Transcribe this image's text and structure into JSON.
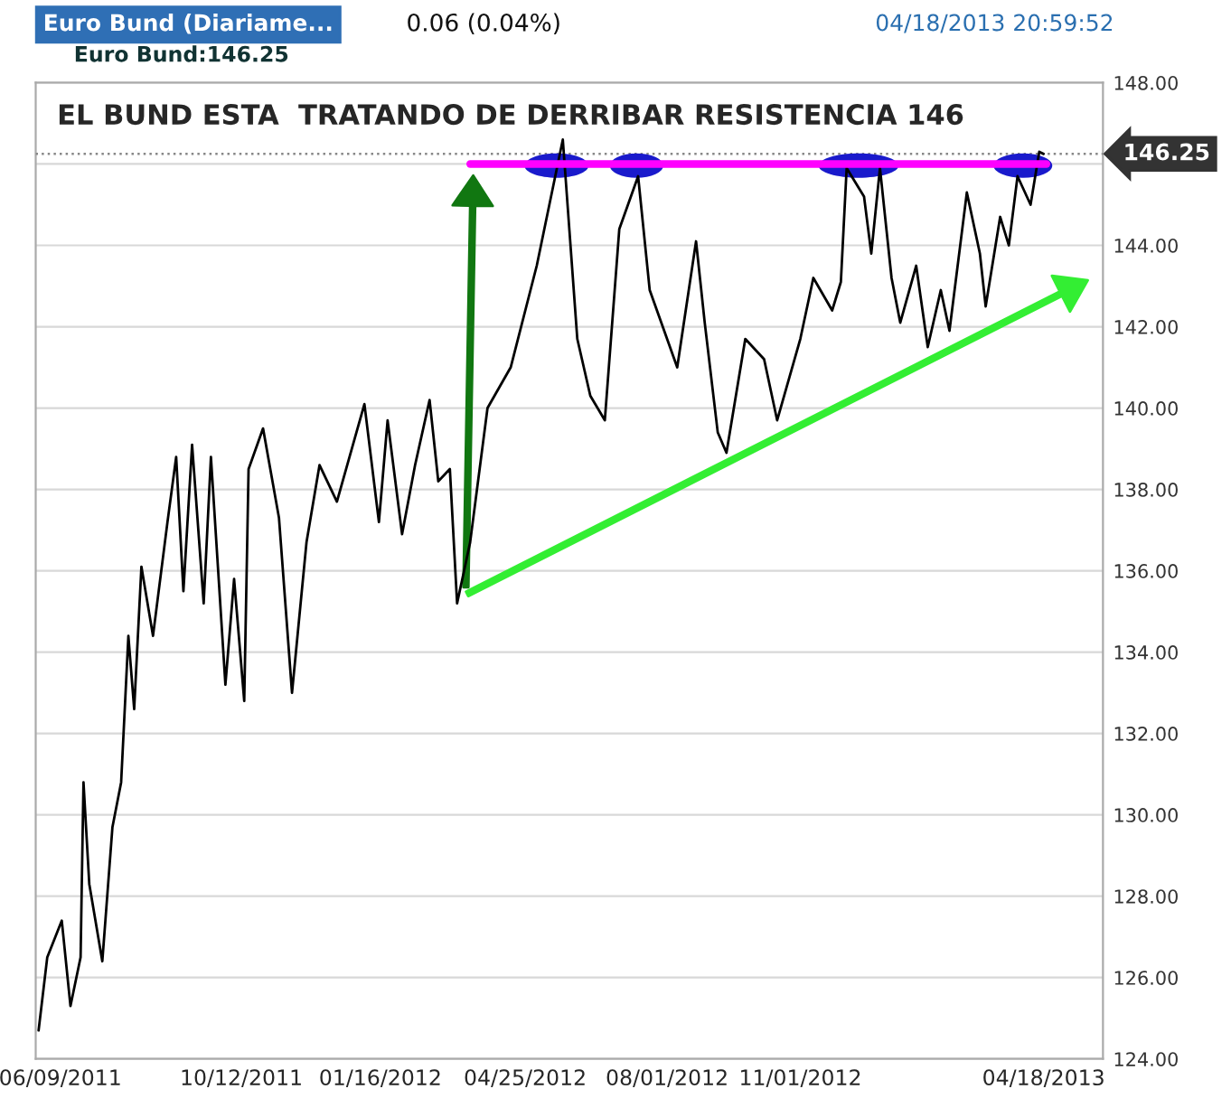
{
  "chart_data": {
    "type": "line",
    "title": "EL BUND ESTA  TRATANDO DE DERRIBAR RESISTENCIA 146",
    "annotations": [
      "Euro Bund (Diariame...",
      "0.06 (0.04%)",
      "04/18/2013 20:59:52",
      "Euro Bund:146.25"
    ],
    "series": [
      {
        "color": "#000000",
        "x": [
          "2011-05-25",
          "2011-05-31",
          "2011-06-10",
          "2011-06-16",
          "2011-06-23",
          "2011-06-25",
          "2011-06-29",
          "2011-07-08",
          "2011-07-15",
          "2011-07-21",
          "2011-07-26",
          "2011-07-30",
          "2011-08-04",
          "2011-08-12",
          "2011-08-22",
          "2011-08-28",
          "2011-09-02",
          "2011-09-08",
          "2011-09-16",
          "2011-09-21",
          "2011-10-01",
          "2011-10-07",
          "2011-10-14",
          "2011-10-17",
          "2011-10-27",
          "2011-11-07",
          "2011-11-16",
          "2011-11-26",
          "2011-12-05",
          "2011-12-17",
          "2012-01-05",
          "2012-01-15",
          "2012-01-21",
          "2012-01-31",
          "2012-02-09",
          "2012-02-19",
          "2012-02-25",
          "2012-03-04",
          "2012-03-09",
          "2012-03-18",
          "2012-03-30",
          "2012-04-15",
          "2012-05-03",
          "2012-05-21",
          "2012-05-31",
          "2012-06-09",
          "2012-06-19",
          "2012-06-29",
          "2012-07-12",
          "2012-07-20",
          "2012-08-08",
          "2012-08-21",
          "2012-08-27",
          "2012-09-05",
          "2012-09-11",
          "2012-09-24",
          "2012-10-07",
          "2012-10-16",
          "2012-11-01",
          "2012-11-10",
          "2012-11-23",
          "2012-11-29",
          "2012-12-03",
          "2012-12-15",
          "2012-12-20",
          "2012-12-26",
          "2013-01-03",
          "2013-01-09",
          "2013-01-20",
          "2013-01-28",
          "2013-02-06",
          "2013-02-12",
          "2013-02-24",
          "2013-03-05",
          "2013-03-09",
          "2013-03-19",
          "2013-03-25",
          "2013-03-31",
          "2013-04-09",
          "2013-04-15",
          "2013-04-18"
        ],
        "values": [
          124.7,
          126.5,
          127.4,
          125.3,
          126.5,
          130.8,
          128.3,
          126.4,
          129.7,
          130.8,
          134.4,
          132.6,
          136.1,
          134.4,
          137.2,
          138.8,
          135.5,
          139.1,
          135.2,
          138.8,
          133.2,
          135.8,
          132.8,
          138.5,
          139.5,
          137.3,
          133.0,
          136.7,
          138.6,
          137.7,
          140.1,
          137.2,
          139.7,
          136.9,
          138.6,
          140.2,
          138.2,
          138.5,
          135.2,
          136.7,
          140.0,
          141.0,
          143.5,
          146.6,
          141.7,
          140.3,
          139.7,
          144.4,
          145.7,
          142.9,
          141.0,
          144.1,
          142.1,
          139.4,
          138.9,
          141.7,
          141.2,
          139.7,
          141.7,
          143.2,
          142.4,
          143.1,
          145.9,
          145.2,
          143.8,
          145.9,
          143.2,
          142.1,
          143.5,
          141.5,
          142.9,
          141.9,
          145.3,
          143.8,
          142.5,
          144.7,
          144.0,
          145.7,
          145.0,
          146.3,
          146.25
        ]
      },
      {
        "type": "line",
        "color": "#ff00ff",
        "x": [
          "2012-03-18",
          "2013-04-20"
        ],
        "values": [
          146.0,
          146.0
        ]
      }
    ],
    "ref_lines": [
      {
        "axis": "y",
        "value": 146.25,
        "label": "146.25",
        "color": "#888888",
        "line_style": "dotted"
      }
    ],
    "xlim": [
      "2011-05-23",
      "2013-05-29"
    ],
    "xticks": [
      {
        "value": "2011-06-09",
        "label": "06/09/2011"
      },
      {
        "value": "2011-10-12",
        "label": "10/12/2011"
      },
      {
        "value": "2012-01-16",
        "label": "01/16/2012"
      },
      {
        "value": "2012-04-25",
        "label": "04/25/2012"
      },
      {
        "value": "2012-08-01",
        "label": "08/01/2012"
      },
      {
        "value": "2012-11-01",
        "label": "11/01/2012"
      },
      {
        "value": "2013-04-18",
        "label": "04/18/2013"
      }
    ],
    "ylim": [
      124,
      148
    ],
    "yticks": [
      {
        "value": 124,
        "label": "124.00"
      },
      {
        "value": 126,
        "label": "126.00"
      },
      {
        "value": 128,
        "label": "128.00"
      },
      {
        "value": 130,
        "label": "130.00"
      },
      {
        "value": 132,
        "label": "132.00"
      },
      {
        "value": 134,
        "label": "134.00"
      },
      {
        "value": 136,
        "label": "136.00"
      },
      {
        "value": 138,
        "label": "138.00"
      },
      {
        "value": 140,
        "label": "140.00"
      },
      {
        "value": 142,
        "label": "142.00"
      },
      {
        "value": 144,
        "label": "144.00"
      },
      {
        "value": 146,
        "label": null
      },
      {
        "value": 148,
        "label": "148.00"
      }
    ],
    "grid": "y",
    "legend": false,
    "marker": "none",
    "line_style": "solid"
  }
}
